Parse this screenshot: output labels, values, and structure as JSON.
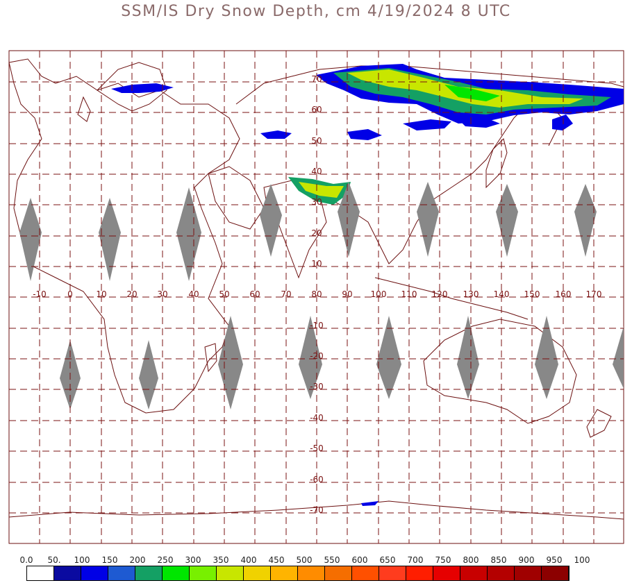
{
  "title": "SSM/IS Dry Snow Depth, cm 4/19/2024 8 UTC",
  "map": {
    "lon_labels": [
      "-10",
      "0",
      "10",
      "20",
      "30",
      "40",
      "50",
      "60",
      "70",
      "80",
      "90",
      "100",
      "110",
      "120",
      "130",
      "140",
      "150",
      "160",
      "170"
    ],
    "lat_labels": [
      "70",
      "60",
      "50",
      "40",
      "30",
      "20",
      "10",
      "-10",
      "-20",
      "-30",
      "-40",
      "-50",
      "-60",
      "-70"
    ],
    "colors": {
      "grid": "#7a1010",
      "coast": "#6b0f0f",
      "gap": "#888888",
      "label": "#7a1010"
    }
  },
  "legend": {
    "labels": [
      "0.0",
      "50.",
      "100",
      "150",
      "200",
      "250",
      "300",
      "350",
      "400",
      "450",
      "500",
      "550",
      "600",
      "650",
      "700",
      "750",
      "800",
      "850",
      "900",
      "950",
      "100"
    ],
    "colors": [
      "#ffffff",
      "#0a0aa0",
      "#0000e6",
      "#1e5ad2",
      "#14a064",
      "#00e600",
      "#78f000",
      "#c8e600",
      "#f0d200",
      "#ffb400",
      "#ff8c00",
      "#f56e00",
      "#ff5000",
      "#ff3c1e",
      "#ff1e00",
      "#e60000",
      "#c80000",
      "#b40000",
      "#a00000",
      "#8c0000"
    ]
  }
}
